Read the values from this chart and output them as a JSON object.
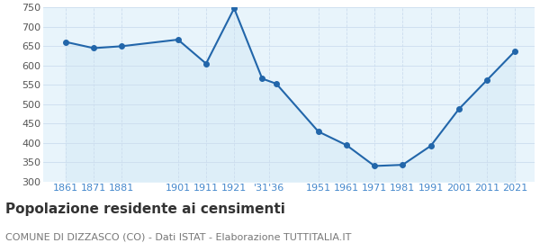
{
  "years": [
    1861,
    1871,
    1881,
    1901,
    1911,
    1921,
    1931,
    1936,
    1951,
    1961,
    1971,
    1981,
    1991,
    2001,
    2011,
    2021
  ],
  "population": [
    661,
    645,
    650,
    667,
    605,
    748,
    566,
    553,
    429,
    394,
    340,
    343,
    392,
    487,
    562,
    637
  ],
  "line_color": "#2266aa",
  "fill_color": "#ddeef8",
  "marker_color": "#2266aa",
  "background_color": "#ffffff",
  "plot_bg_color": "#e8f4fb",
  "grid_color": "#ccddee",
  "title": "Popolazione residente ai censimenti",
  "subtitle": "COMUNE DI DIZZASCO (CO) - Dati ISTAT - Elaborazione TUTTITALIA.IT",
  "title_color": "#333333",
  "subtitle_color": "#777777",
  "label_color": "#4488cc",
  "ylim": [
    300,
    750
  ],
  "yticks": [
    300,
    350,
    400,
    450,
    500,
    550,
    600,
    650,
    700,
    750
  ],
  "title_fontsize": 11,
  "subtitle_fontsize": 8,
  "tick_fontsize": 8
}
